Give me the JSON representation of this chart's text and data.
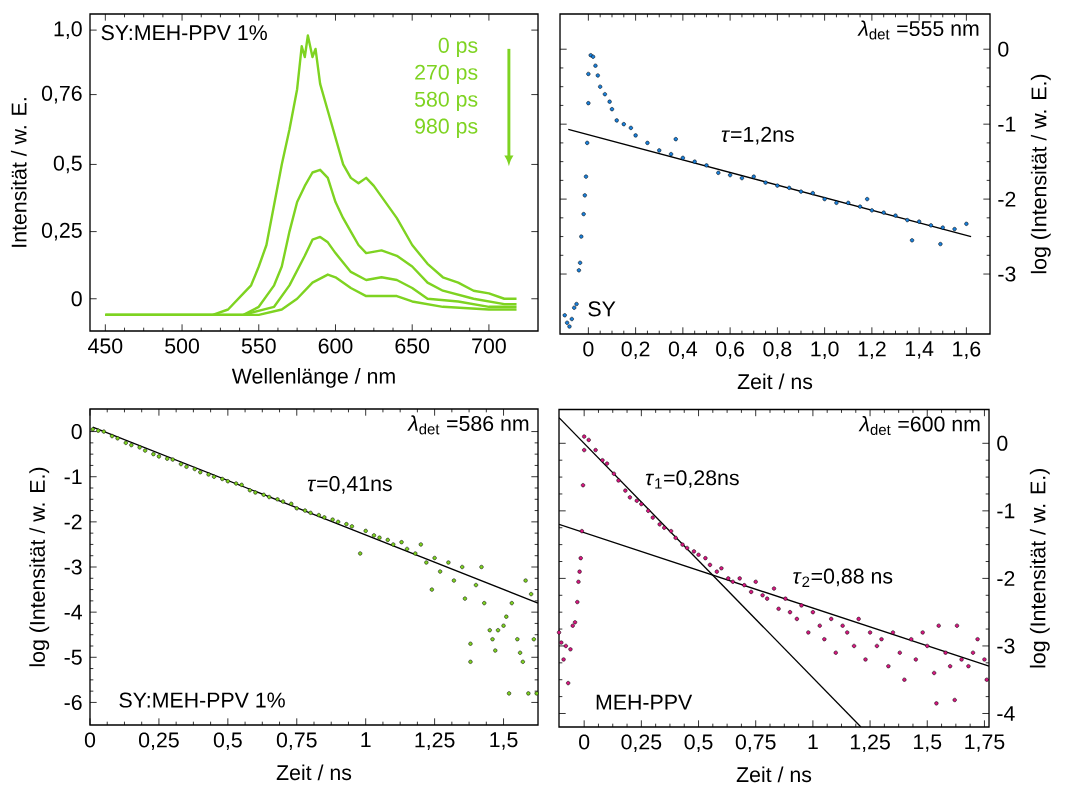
{
  "chart_data": [
    {
      "type": "line",
      "xlabel": "Wellenlänge / nm",
      "ylabel": "Intensität / w. E.",
      "xlim": [
        440,
        732
      ],
      "ylim": [
        -0.12,
        1.06
      ],
      "xticks": [
        450,
        500,
        550,
        600,
        650,
        700
      ],
      "yticks": [
        0,
        {
          "value": 0.25,
          "label": "0,25"
        },
        {
          "value": 0.5,
          "label": "0,5"
        },
        {
          "value": 0.76,
          "label": "0,76"
        },
        {
          "value": 1,
          "label": "1,0"
        }
      ],
      "annotations": [
        "SY:MEH-PPV 1%",
        "0 ps",
        "270 ps",
        "580 ps",
        "980 ps"
      ],
      "series": [
        {
          "color": "#7ed321",
          "x": [
            450,
            480,
            500,
            520,
            530,
            540,
            545,
            550,
            555,
            560,
            565,
            570,
            575,
            578,
            580,
            582,
            585,
            587,
            590,
            595,
            600,
            605,
            610,
            615,
            620,
            625,
            630,
            640,
            650,
            660,
            670,
            680,
            690,
            700,
            710,
            718
          ],
          "values": [
            -0.06,
            -0.06,
            -0.06,
            -0.06,
            -0.04,
            0.02,
            0.05,
            0.12,
            0.2,
            0.35,
            0.5,
            0.63,
            0.78,
            0.94,
            0.9,
            0.98,
            0.9,
            0.93,
            0.8,
            0.7,
            0.6,
            0.5,
            0.45,
            0.43,
            0.45,
            0.42,
            0.38,
            0.3,
            0.2,
            0.13,
            0.08,
            0.06,
            0.03,
            0.02,
            0.0,
            0.0
          ]
        },
        {
          "color": "#7ed321",
          "x": [
            450,
            480,
            520,
            540,
            550,
            560,
            565,
            570,
            575,
            580,
            585,
            590,
            595,
            600,
            605,
            610,
            615,
            620,
            630,
            640,
            650,
            660,
            670,
            690,
            710,
            718
          ],
          "values": [
            -0.06,
            -0.06,
            -0.06,
            -0.06,
            -0.03,
            0.05,
            0.12,
            0.25,
            0.36,
            0.42,
            0.47,
            0.48,
            0.45,
            0.36,
            0.3,
            0.25,
            0.2,
            0.17,
            0.18,
            0.16,
            0.12,
            0.06,
            0.03,
            0.0,
            -0.02,
            -0.02
          ]
        },
        {
          "color": "#7ed321",
          "x": [
            450,
            500,
            540,
            560,
            570,
            580,
            585,
            590,
            595,
            600,
            610,
            620,
            630,
            640,
            650,
            660,
            680,
            700,
            718
          ],
          "values": [
            -0.06,
            -0.06,
            -0.06,
            -0.03,
            0.05,
            0.16,
            0.22,
            0.23,
            0.21,
            0.17,
            0.1,
            0.07,
            0.08,
            0.07,
            0.04,
            0.0,
            -0.01,
            -0.03,
            -0.03
          ]
        },
        {
          "color": "#7ed321",
          "x": [
            450,
            500,
            550,
            565,
            575,
            585,
            595,
            600,
            610,
            620,
            640,
            650,
            670,
            700,
            718
          ],
          "values": [
            -0.06,
            -0.06,
            -0.06,
            -0.04,
            0.0,
            0.06,
            0.09,
            0.08,
            0.04,
            0.01,
            0.01,
            -0.01,
            -0.03,
            -0.04,
            -0.04
          ]
        }
      ]
    },
    {
      "type": "scatter",
      "xlabel": "Zeit / ns",
      "y2label": "log (Intensität / w. E.)",
      "xlim": [
        -0.12,
        1.7
      ],
      "y2lim": [
        -3.8,
        0.47
      ],
      "xticks": [
        0,
        {
          "value": 0.2,
          "label": "0,2"
        },
        {
          "value": 0.4,
          "label": "0,4"
        },
        {
          "value": 0.6,
          "label": "0,6"
        },
        {
          "value": 0.8,
          "label": "0,8"
        },
        {
          "value": 1.0,
          "label": "1,0"
        },
        {
          "value": 1.2,
          "label": "1,2"
        },
        {
          "value": 1.4,
          "label": "1,4"
        },
        {
          "value": 1.6,
          "label": "1,6"
        }
      ],
      "y2ticks": [
        {
          "value": -3,
          "label": "-3"
        },
        {
          "value": -2,
          "label": "-2"
        },
        {
          "value": -1,
          "label": "-1"
        },
        0
      ],
      "annotations": [
        "*λ*$_{det}$ =555 nm",
        "SY",
        "*τ*=1,2ns"
      ],
      "series": [
        {
          "color": "#1a7fd9",
          "axis": "y2",
          "x": [
            -0.1,
            -0.09,
            -0.08,
            -0.07,
            -0.06,
            -0.05,
            -0.04,
            -0.035,
            -0.03,
            -0.02,
            -0.015,
            -0.01,
            -0.005,
            0.0,
            0.0,
            0.01,
            0.02,
            0.03,
            0.04,
            0.05,
            0.07,
            0.09,
            0.1,
            0.12,
            0.15,
            0.18,
            0.2,
            0.25,
            0.3,
            0.35,
            0.37,
            0.4,
            0.45,
            0.5,
            0.55,
            0.6,
            0.65,
            0.7,
            0.75,
            0.8,
            0.85,
            0.9,
            0.95,
            1.0,
            1.05,
            1.1,
            1.15,
            1.18,
            1.2,
            1.25,
            1.3,
            1.35,
            1.37,
            1.4,
            1.45,
            1.49,
            1.5,
            1.55,
            1.6
          ],
          "values": [
            -3.55,
            -3.65,
            -3.7,
            -3.6,
            -3.45,
            -3.4,
            -2.95,
            -2.85,
            -2.5,
            -2.2,
            -1.95,
            -1.7,
            -1.25,
            -0.72,
            -0.33,
            -0.08,
            -0.1,
            -0.22,
            -0.35,
            -0.5,
            -0.6,
            -0.7,
            -0.8,
            -0.95,
            -1.0,
            -1.05,
            -1.15,
            -1.25,
            -1.35,
            -1.4,
            -1.2,
            -1.45,
            -1.5,
            -1.55,
            -1.65,
            -1.68,
            -1.72,
            -1.7,
            -1.78,
            -1.82,
            -1.85,
            -1.9,
            -1.92,
            -2.0,
            -2.05,
            -2.05,
            -2.1,
            -2.0,
            -2.15,
            -2.18,
            -2.22,
            -2.28,
            -2.55,
            -2.3,
            -2.35,
            -2.6,
            -2.38,
            -2.4,
            -2.33
          ]
        },
        {
          "type": "line",
          "color": "#000000",
          "axis": "y2",
          "x": [
            -0.085,
            1.62
          ],
          "values": [
            -1.07,
            -2.5
          ]
        }
      ]
    },
    {
      "type": "scatter",
      "xlabel": "Zeit / ns",
      "ylabel": "log (Intensität / w. E.)",
      "xlim": [
        0,
        1.625
      ],
      "ylim": [
        -6.5,
        0.5
      ],
      "xticks": [
        0,
        {
          "value": 0.25,
          "label": "0,25"
        },
        {
          "value": 0.5,
          "label": "0,5"
        },
        {
          "value": 0.75,
          "label": "0,75"
        },
        1,
        {
          "value": 1.25,
          "label": "1,25"
        },
        {
          "value": 1.5,
          "label": "1,5"
        }
      ],
      "yticks": [
        {
          "value": -6,
          "label": "-6"
        },
        {
          "value": -5,
          "label": "-5"
        },
        {
          "value": -4,
          "label": "-4"
        },
        {
          "value": -3,
          "label": "-3"
        },
        {
          "value": -2,
          "label": "-2"
        },
        {
          "value": -1,
          "label": "-1"
        },
        0
      ],
      "annotations": [
        "*λ*$_{det}$ =586 nm",
        "SY:MEH-PPV 1%",
        "*τ*=0,41ns"
      ],
      "series": [
        {
          "color": "#7ed321",
          "x": [
            0.01,
            0.03,
            0.05,
            0.08,
            0.1,
            0.13,
            0.15,
            0.18,
            0.2,
            0.23,
            0.25,
            0.28,
            0.3,
            0.33,
            0.35,
            0.38,
            0.4,
            0.43,
            0.45,
            0.48,
            0.5,
            0.53,
            0.55,
            0.58,
            0.6,
            0.63,
            0.65,
            0.68,
            0.7,
            0.73,
            0.75,
            0.78,
            0.8,
            0.83,
            0.85,
            0.88,
            0.9,
            0.93,
            0.95,
            0.98,
            1.0,
            1.03,
            1.05,
            1.08,
            1.1,
            1.13,
            1.15,
            1.18,
            1.2,
            1.22,
            1.24,
            1.25,
            1.27,
            1.3,
            1.32,
            1.35,
            1.36,
            1.38,
            1.38,
            1.4,
            1.42,
            1.43,
            1.45,
            1.46,
            1.47,
            1.48,
            1.5,
            1.51,
            1.52,
            1.53,
            1.55,
            1.56,
            1.57,
            1.58,
            1.59,
            1.6,
            1.61,
            1.62
          ],
          "values": [
            0.05,
            0.02,
            0.0,
            -0.1,
            -0.15,
            -0.25,
            -0.3,
            -0.35,
            -0.42,
            -0.5,
            -0.55,
            -0.6,
            -0.62,
            -0.72,
            -0.78,
            -0.83,
            -0.9,
            -0.95,
            -1.0,
            -1.05,
            -1.1,
            -1.15,
            -1.18,
            -1.3,
            -1.35,
            -1.4,
            -1.45,
            -1.5,
            -1.55,
            -1.6,
            -1.7,
            -1.75,
            -1.8,
            -1.85,
            -1.9,
            -1.95,
            -2.0,
            -2.05,
            -2.1,
            -2.7,
            -2.2,
            -2.3,
            -2.35,
            -2.4,
            -2.5,
            -2.45,
            -2.6,
            -2.7,
            -2.5,
            -2.9,
            -3.5,
            -2.8,
            -3.1,
            -2.9,
            -3.3,
            -3.0,
            -3.7,
            -4.7,
            -5.1,
            -3.4,
            -3.0,
            -3.8,
            -4.4,
            -4.6,
            -4.85,
            -4.4,
            -4.3,
            -4.1,
            -5.8,
            -3.8,
            -4.6,
            -4.9,
            -5.1,
            -3.3,
            -5.8,
            -3.6,
            -4.6,
            -5.8
          ]
        },
        {
          "type": "line",
          "color": "#000000",
          "x": [
            0.01,
            1.625
          ],
          "values": [
            0.1,
            -3.8
          ]
        }
      ]
    },
    {
      "type": "scatter",
      "xlabel": "Zeit / ns",
      "y2label": "log (Intensität / w. E.)",
      "xlim": [
        -0.11,
        1.77
      ],
      "y2lim": [
        -4.2,
        0.5
      ],
      "xticks": [
        0,
        {
          "value": 0.25,
          "label": "0,25"
        },
        {
          "value": 0.5,
          "label": "0,5"
        },
        {
          "value": 0.75,
          "label": "0,75"
        },
        1,
        {
          "value": 1.25,
          "label": "1,25"
        },
        {
          "value": 1.5,
          "label": "1,5"
        },
        {
          "value": 1.75,
          "label": "1,75"
        }
      ],
      "y2ticks": [
        {
          "value": -4,
          "label": "-4"
        },
        {
          "value": -3,
          "label": "-3"
        },
        {
          "value": -2,
          "label": "-2"
        },
        {
          "value": -1,
          "label": "-1"
        },
        0
      ],
      "annotations": [
        "*λ*$_{det}$ =600 nm",
        "MEH-PPV",
        "*τ*$_{1}$=0,28ns",
        "*τ*$_{2}$=0,88 ns"
      ],
      "series": [
        {
          "color": "#d6177f",
          "axis": "y2",
          "x": [
            -0.11,
            -0.1,
            -0.09,
            -0.08,
            -0.07,
            -0.06,
            -0.05,
            -0.04,
            -0.03,
            -0.025,
            -0.02,
            -0.015,
            -0.01,
            -0.005,
            0.0,
            0.0,
            0.02,
            0.05,
            0.08,
            0.1,
            0.13,
            0.15,
            0.18,
            0.2,
            0.23,
            0.25,
            0.28,
            0.3,
            0.33,
            0.35,
            0.38,
            0.4,
            0.43,
            0.45,
            0.48,
            0.5,
            0.53,
            0.55,
            0.58,
            0.6,
            0.63,
            0.65,
            0.68,
            0.7,
            0.73,
            0.75,
            0.78,
            0.8,
            0.83,
            0.85,
            0.88,
            0.9,
            0.93,
            0.95,
            0.98,
            1.0,
            1.03,
            1.05,
            1.08,
            1.1,
            1.13,
            1.15,
            1.18,
            1.2,
            1.23,
            1.25,
            1.28,
            1.3,
            1.33,
            1.35,
            1.38,
            1.4,
            1.43,
            1.45,
            1.48,
            1.5,
            1.53,
            1.54,
            1.55,
            1.58,
            1.6,
            1.62,
            1.63,
            1.65,
            1.68,
            1.7,
            1.72,
            1.75,
            1.76
          ],
          "values": [
            -2.8,
            -2.95,
            -3.2,
            -3.0,
            -3.55,
            -3.05,
            -2.7,
            -2.65,
            -2.35,
            -2.05,
            -1.9,
            -1.7,
            -1.3,
            -0.62,
            -0.1,
            0.1,
            0.05,
            -0.1,
            -0.25,
            -0.3,
            -0.45,
            -0.55,
            -0.7,
            -0.8,
            -0.85,
            -0.9,
            -1.0,
            -1.1,
            -1.2,
            -1.25,
            -1.3,
            -1.4,
            -1.5,
            -1.55,
            -1.6,
            -1.65,
            -1.7,
            -1.8,
            -1.9,
            -1.85,
            -2.0,
            -2.05,
            -2.0,
            -2.1,
            -2.2,
            -2.05,
            -2.25,
            -2.3,
            -2.15,
            -2.45,
            -2.3,
            -2.5,
            -2.6,
            -2.4,
            -2.8,
            -2.5,
            -2.7,
            -2.9,
            -2.6,
            -3.1,
            -2.7,
            -2.8,
            -3.0,
            -2.6,
            -3.2,
            -2.8,
            -3.0,
            -2.9,
            -3.3,
            -2.8,
            -3.1,
            -3.5,
            -2.9,
            -3.2,
            -2.8,
            -3.0,
            -3.4,
            -3.85,
            -2.7,
            -3.1,
            -3.3,
            -3.8,
            -2.7,
            -3.2,
            -3.3,
            -3.1,
            -2.9,
            -3.2,
            -3.5
          ]
        },
        {
          "type": "line",
          "color": "#000000",
          "axis": "y2",
          "x": [
            -0.11,
            1.21
          ],
          "values": [
            0.38,
            -4.2
          ]
        },
        {
          "type": "line",
          "color": "#000000",
          "axis": "y2",
          "x": [
            -0.11,
            1.77
          ],
          "values": [
            -1.2,
            -3.3
          ]
        }
      ]
    }
  ]
}
